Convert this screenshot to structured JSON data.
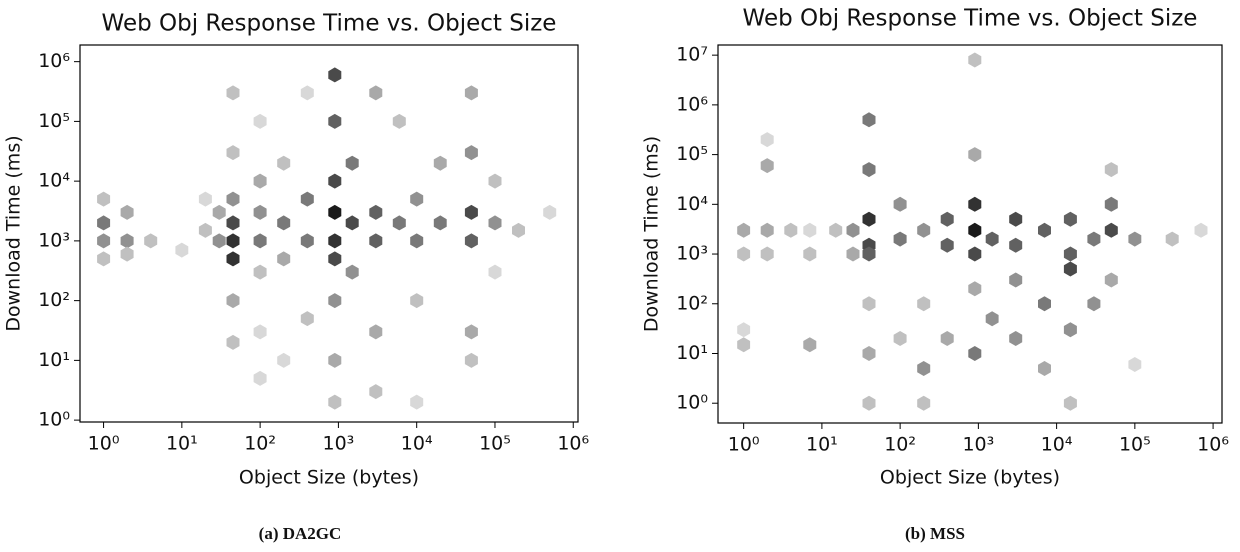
{
  "chart_data": [
    {
      "type": "hexbin",
      "title": "Web Obj Response Time vs. Object Size",
      "x_label": "Object Size (bytes)",
      "y_label": "Download Time (ms)",
      "caption": "(a) DA2GC",
      "log_x": true,
      "log_y": true,
      "cmap": [
        "#f0f0f0",
        "#1a1a1a"
      ],
      "count_range": [
        1,
        10
      ],
      "xlim": [
        0.5,
        1150000
      ],
      "ylim": [
        0.93,
        1900000
      ],
      "xticks": [
        {
          "value": 1,
          "label": "10⁰"
        },
        {
          "value": 10,
          "label": "10¹"
        },
        {
          "value": 100,
          "label": "10²"
        },
        {
          "value": 1000,
          "label": "10³"
        },
        {
          "value": 10000,
          "label": "10⁴"
        },
        {
          "value": 100000,
          "label": "10⁵"
        },
        {
          "value": 1000000,
          "label": "10⁶"
        }
      ],
      "yticks": [
        {
          "value": 1,
          "label": "10⁰"
        },
        {
          "value": 10,
          "label": "10¹"
        },
        {
          "value": 100,
          "label": "10²"
        },
        {
          "value": 1000,
          "label": "10³"
        },
        {
          "value": 10000,
          "label": "10⁴"
        },
        {
          "value": 100000,
          "label": "10⁵"
        },
        {
          "value": 1000000,
          "label": "10⁶"
        }
      ],
      "x": [
        1,
        1,
        1,
        1,
        2,
        2,
        2,
        4,
        10,
        20,
        20,
        30,
        30,
        45,
        45,
        45,
        45,
        45,
        45,
        45,
        45,
        100,
        100,
        100,
        100,
        100,
        100,
        100,
        200,
        200,
        200,
        200,
        400,
        400,
        400,
        400,
        900,
        900,
        900,
        900,
        900,
        900,
        900,
        900,
        900,
        1500,
        1500,
        1500,
        3000,
        3000,
        3000,
        3000,
        3000,
        6000,
        6000,
        10000,
        10000,
        10000,
        10000,
        20000,
        20000,
        50000,
        50000,
        50000,
        50000,
        50000,
        50000,
        100000,
        100000,
        100000,
        200000,
        500000
      ],
      "y": [
        500,
        1000,
        2000,
        5000,
        1000,
        3000,
        600,
        1000,
        700,
        1500,
        5000,
        1000,
        3000,
        500,
        1000,
        2000,
        5000,
        30000,
        300000,
        100,
        20,
        1000,
        3000,
        10000,
        100000,
        300,
        30,
        5,
        2000,
        20000,
        500,
        10,
        1000,
        5000,
        50,
        300000,
        500,
        1000,
        3000,
        10000,
        100000,
        600000,
        100,
        10,
        2,
        2000,
        20000,
        300,
        1000,
        3000,
        300000,
        30,
        3,
        2000,
        100000,
        1000,
        5000,
        100,
        2,
        2000,
        20000,
        1000,
        3000,
        30000,
        300000,
        30,
        10,
        2000,
        10000,
        300,
        1500,
        3000
      ],
      "counts": [
        3,
        5,
        6,
        3,
        5,
        4,
        3,
        3,
        2,
        3,
        2,
        5,
        4,
        9,
        9,
        8,
        5,
        3,
        3,
        4,
        3,
        6,
        5,
        4,
        2,
        3,
        2,
        2,
        6,
        3,
        4,
        2,
        6,
        6,
        3,
        2,
        8,
        9,
        10,
        8,
        7,
        8,
        5,
        4,
        3,
        8,
        6,
        5,
        7,
        7,
        4,
        4,
        3,
        6,
        3,
        6,
        5,
        3,
        2,
        6,
        4,
        7,
        8,
        5,
        4,
        4,
        3,
        5,
        3,
        2,
        3,
        2
      ]
    },
    {
      "type": "hexbin",
      "title": "Web Obj Response Time vs. Object Size",
      "x_label": "Object Size (bytes)",
      "y_label": "Download Time (ms)",
      "caption": "(b) MSS",
      "log_x": true,
      "log_y": true,
      "cmap": [
        "#f0f0f0",
        "#1a1a1a"
      ],
      "count_range": [
        1,
        10
      ],
      "xlim": [
        0.47,
        1300000
      ],
      "ylim": [
        0.4,
        16000000
      ],
      "xticks": [
        {
          "value": 1,
          "label": "10⁰"
        },
        {
          "value": 10,
          "label": "10¹"
        },
        {
          "value": 100,
          "label": "10²"
        },
        {
          "value": 1000,
          "label": "10³"
        },
        {
          "value": 10000,
          "label": "10⁴"
        },
        {
          "value": 100000,
          "label": "10⁵"
        },
        {
          "value": 1000000,
          "label": "10⁶"
        }
      ],
      "yticks": [
        {
          "value": 1,
          "label": "10⁰"
        },
        {
          "value": 10,
          "label": "10¹"
        },
        {
          "value": 100,
          "label": "10²"
        },
        {
          "value": 1000,
          "label": "10³"
        },
        {
          "value": 10000,
          "label": "10⁴"
        },
        {
          "value": 100000,
          "label": "10⁵"
        },
        {
          "value": 1000000,
          "label": "10⁶"
        },
        {
          "value": 10000000,
          "label": "10⁷"
        }
      ],
      "x": [
        1,
        1,
        1,
        1,
        2,
        2,
        2,
        2,
        4,
        7,
        7,
        7,
        15,
        25,
        25,
        40,
        40,
        40,
        40,
        40,
        40,
        40,
        40,
        100,
        100,
        100,
        200,
        200,
        200,
        200,
        400,
        400,
        400,
        900,
        900,
        900,
        900,
        900,
        900,
        900,
        1500,
        1500,
        3000,
        3000,
        3000,
        3000,
        7000,
        7000,
        7000,
        15000,
        15000,
        15000,
        15000,
        15000,
        30000,
        30000,
        50000,
        50000,
        50000,
        50000,
        100000,
        100000,
        300000,
        700000
      ],
      "y": [
        3000,
        1000,
        30,
        15,
        3000,
        60000,
        200000,
        1000,
        3000,
        15,
        1000,
        3000,
        3000,
        3000,
        1000,
        5000,
        1500,
        500000,
        50000,
        1000,
        100,
        10,
        1,
        2000,
        10000,
        20,
        3000,
        5,
        1,
        100,
        1500,
        5000,
        20,
        1000,
        3000,
        10000,
        100000,
        8000000,
        10,
        200,
        2000,
        50,
        1500,
        5000,
        300,
        20,
        3000,
        100,
        5,
        1000,
        5000,
        500,
        30,
        1,
        2000,
        100,
        3000,
        10000,
        50000,
        300,
        2000,
        6,
        2000,
        3000
      ],
      "counts": [
        4,
        3,
        2,
        3,
        4,
        4,
        2,
        3,
        3,
        4,
        3,
        2,
        3,
        5,
        4,
        9,
        8,
        6,
        6,
        7,
        3,
        4,
        3,
        6,
        5,
        3,
        5,
        5,
        3,
        3,
        7,
        7,
        4,
        8,
        10,
        9,
        4,
        3,
        6,
        4,
        7,
        5,
        7,
        8,
        5,
        5,
        7,
        6,
        4,
        7,
        7,
        8,
        5,
        3,
        6,
        5,
        8,
        6,
        3,
        4,
        5,
        2,
        3,
        2
      ]
    }
  ]
}
